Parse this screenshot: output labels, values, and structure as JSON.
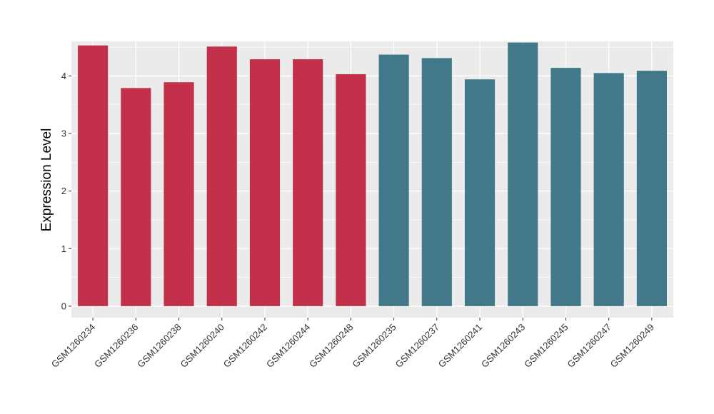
{
  "chart_data": {
    "type": "bar",
    "title": "",
    "xlabel": "",
    "ylabel": "Expression Level",
    "ylim": [
      -0.2,
      4.6
    ],
    "yticks": [
      0,
      1,
      2,
      3,
      4
    ],
    "grid": true,
    "legend": "none",
    "categories": [
      "GSM1260234",
      "GSM1260236",
      "GSM1260238",
      "GSM1260240",
      "GSM1260242",
      "GSM1260244",
      "GSM1260248",
      "GSM1260235",
      "GSM1260237",
      "GSM1260241",
      "GSM1260243",
      "GSM1260245",
      "GSM1260247",
      "GSM1260249"
    ],
    "values": [
      4.53,
      3.79,
      3.89,
      4.51,
      4.29,
      4.29,
      4.03,
      4.37,
      4.31,
      3.94,
      4.58,
      4.14,
      4.05,
      4.09
    ],
    "groups": [
      0,
      0,
      0,
      0,
      0,
      0,
      0,
      1,
      1,
      1,
      1,
      1,
      1,
      1
    ],
    "colors": {
      "group_a": "#c3304a",
      "group_b": "#41788a",
      "panel": "#ebebeb",
      "grid": "#ffffff"
    }
  }
}
